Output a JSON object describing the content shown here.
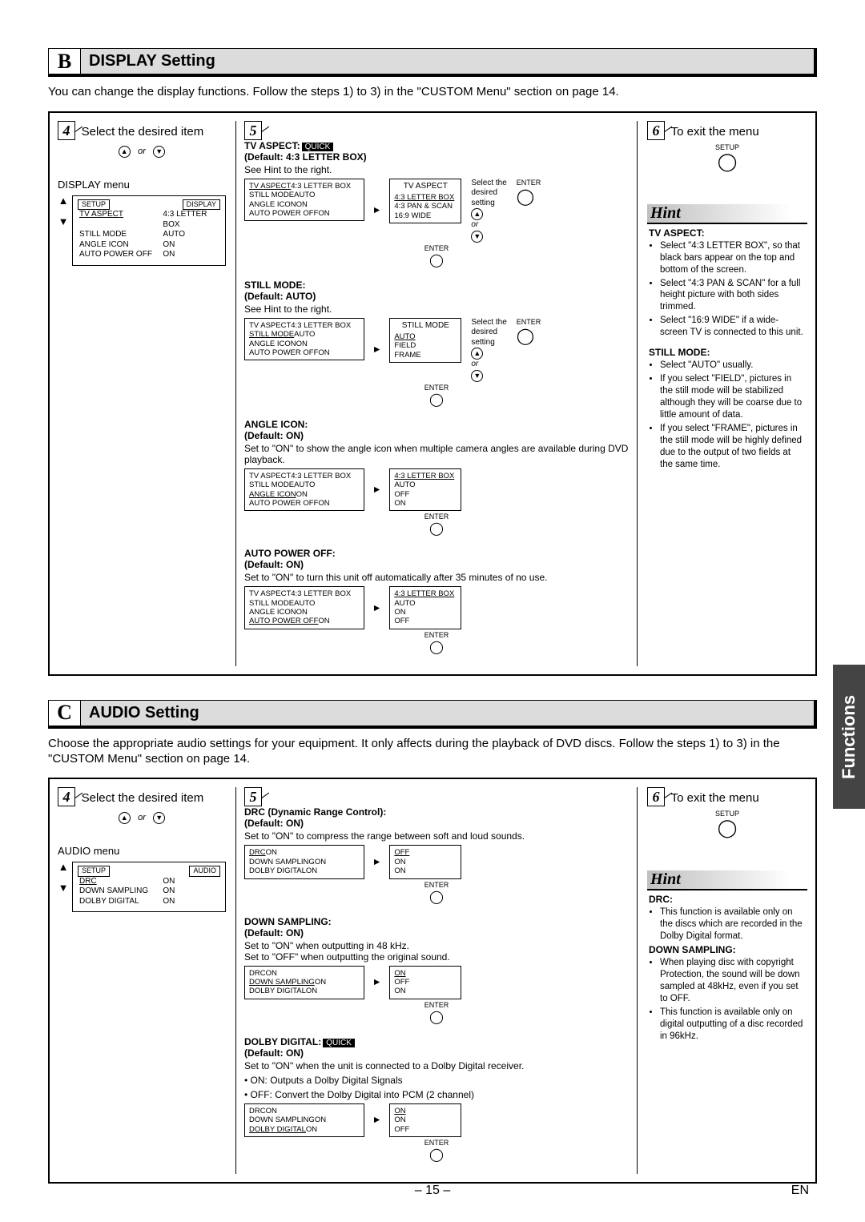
{
  "sectionB": {
    "letter": "B",
    "title": "DISPLAY Setting",
    "intro": "You can change the display functions. Follow the steps 1) to 3) in the \"CUSTOM Menu\" section on page 14.",
    "step4": {
      "num": "4",
      "label": "Select the desired item",
      "or": "or"
    },
    "step5": {
      "num": "5"
    },
    "step6": {
      "num": "6",
      "label": "To exit the menu",
      "setup": "SETUP"
    },
    "display_menu_title": "DISPLAY menu",
    "menu": {
      "hdr_left": "SETUP",
      "hdr_right": "DISPLAY",
      "rows": [
        {
          "l": "TV ASPECT",
          "r": "4:3 LETTER BOX",
          "ul": true
        },
        {
          "l": "STILL MODE",
          "r": "AUTO"
        },
        {
          "l": "ANGLE ICON",
          "r": "ON"
        },
        {
          "l": "AUTO POWER OFF",
          "r": "ON"
        }
      ]
    },
    "settings": [
      {
        "name": "TV ASPECT:",
        "quick": "QUICK",
        "default": "(Default: 4:3 LETTER BOX)",
        "note": "See Hint to the right.",
        "left_box_hdr": "",
        "left_hl": "TV ASPECT",
        "left_rows": [
          {
            "l": "TV ASPECT",
            "r": "4:3 LETTER BOX"
          },
          {
            "l": "STILL MODE",
            "r": "AUTO"
          },
          {
            "l": "ANGLE ICON",
            "r": "ON"
          },
          {
            "l": "AUTO POWER OFF",
            "r": "ON"
          }
        ],
        "right_title": "TV ASPECT",
        "right_rows": [
          "4:3 LETTER BOX",
          "4:3 PAN & SCAN",
          "16:9 WIDE"
        ],
        "side": "Select the\ndesired\nsetting",
        "side2": "or",
        "enter": "ENTER"
      },
      {
        "name": "STILL MODE:",
        "default": "(Default: AUTO)",
        "note": "See Hint to the right.",
        "left_hl": "STILL MODE",
        "left_rows": [
          {
            "l": "TV ASPECT",
            "r": "4:3 LETTER BOX"
          },
          {
            "l": "STILL MODE",
            "r": "AUTO"
          },
          {
            "l": "ANGLE ICON",
            "r": "ON"
          },
          {
            "l": "AUTO POWER OFF",
            "r": "ON"
          }
        ],
        "right_title": "STILL MODE",
        "right_rows": [
          "AUTO",
          "FIELD",
          "FRAME"
        ],
        "side": "Select the\ndesired\nsetting",
        "side2": "or",
        "enter": "ENTER"
      },
      {
        "name": "ANGLE ICON:",
        "default": "(Default: ON)",
        "note": "Set to \"ON\" to show the angle icon when multiple camera angles are available during DVD playback.",
        "left_hl": "ANGLE ICON",
        "left_rows": [
          {
            "l": "TV ASPECT",
            "r": "4:3 LETTER BOX"
          },
          {
            "l": "STILL MODE",
            "r": "AUTO"
          },
          {
            "l": "ANGLE ICON",
            "r": "ON"
          },
          {
            "l": "AUTO POWER OFF",
            "r": "ON"
          }
        ],
        "right_title": "",
        "right_rows": [
          "4:3 LETTER BOX",
          "AUTO",
          "OFF",
          "ON"
        ],
        "enter": "ENTER"
      },
      {
        "name": "AUTO POWER OFF:",
        "default": "(Default: ON)",
        "note": "Set to \"ON\" to turn this unit off automatically after 35 minutes of no use.",
        "left_hl": "AUTO POWER OFF",
        "left_rows": [
          {
            "l": "TV ASPECT",
            "r": "4:3 LETTER BOX"
          },
          {
            "l": "STILL MODE",
            "r": "AUTO"
          },
          {
            "l": "ANGLE ICON",
            "r": "ON"
          },
          {
            "l": "AUTO POWER OFF",
            "r": "ON"
          }
        ],
        "right_title": "",
        "right_rows": [
          "4:3 LETTER BOX",
          "AUTO",
          "ON",
          "OFF"
        ],
        "enter": "ENTER"
      }
    ],
    "hint_title": "Hint",
    "hint": {
      "tv_aspect": "TV ASPECT:",
      "tv_items": [
        "Select \"4:3 LETTER BOX\", so that black bars appear on the top and bottom of the screen.",
        "Select \"4:3 PAN & SCAN\" for a full height picture with both sides trimmed.",
        "Select \"16:9 WIDE\" if a wide-screen TV is connected to this unit."
      ],
      "still": "STILL MODE:",
      "still_items": [
        "Select \"AUTO\" usually.",
        "If you select \"FIELD\", pictures in the still mode will be stabilized although they will be coarse due to little amount of data.",
        "If you select \"FRAME\", pictures in the still mode will be highly defined due to the output of two fields at the same time."
      ]
    }
  },
  "sectionC": {
    "letter": "C",
    "title": "AUDIO Setting",
    "intro": "Choose the appropriate audio settings for your equipment. It only affects during the playback of DVD discs. Follow the steps 1) to 3) in the \"CUSTOM Menu\" section on page 14.",
    "step4": {
      "num": "4",
      "label": "Select the desired item",
      "or": "or"
    },
    "step5": {
      "num": "5"
    },
    "step6": {
      "num": "6",
      "label": "To exit the menu",
      "setup": "SETUP"
    },
    "audio_menu_title": "AUDIO menu",
    "menu": {
      "hdr_left": "SETUP",
      "hdr_right": "AUDIO",
      "rows": [
        {
          "l": "DRC",
          "r": "ON",
          "ul": true
        },
        {
          "l": "DOWN SAMPLING",
          "r": "ON"
        },
        {
          "l": "DOLBY DIGITAL",
          "r": "ON"
        }
      ]
    },
    "settings": [
      {
        "name": "DRC (Dynamic Range Control):",
        "default": "(Default: ON)",
        "note": "Set to \"ON\" to compress the range between soft and loud sounds.",
        "left_hl": "DRC",
        "left_rows": [
          {
            "l": "DRC",
            "r": "ON"
          },
          {
            "l": "DOWN SAMPLING",
            "r": "ON"
          },
          {
            "l": "DOLBY DIGITAL",
            "r": "ON"
          }
        ],
        "right_rows": [
          "OFF",
          "ON",
          "ON"
        ],
        "enter": "ENTER"
      },
      {
        "name": "DOWN SAMPLING:",
        "default": "(Default: ON)",
        "note": "Set to \"ON\" when outputting in 48 kHz.\nSet to \"OFF\" when outputting the original sound.",
        "left_hl": "DOWN SAMPLING",
        "left_rows": [
          {
            "l": "DRC",
            "r": "ON"
          },
          {
            "l": "DOWN SAMPLING",
            "r": "ON"
          },
          {
            "l": "DOLBY DIGITAL",
            "r": "ON"
          }
        ],
        "right_rows": [
          "ON",
          "OFF",
          "ON"
        ],
        "enter": "ENTER"
      },
      {
        "name": "DOLBY DIGITAL:",
        "quick": "QUICK",
        "default": "(Default: ON)",
        "note": "Set to \"ON\" when the unit is connected to a Dolby Digital receiver.",
        "bullets": [
          "ON: Outputs a Dolby Digital Signals",
          "OFF: Convert the Dolby Digital into PCM (2 channel)"
        ],
        "left_hl": "DOLBY DIGITAL",
        "left_rows": [
          {
            "l": "DRC",
            "r": "ON"
          },
          {
            "l": "DOWN SAMPLING",
            "r": "ON"
          },
          {
            "l": "DOLBY DIGITAL",
            "r": "ON"
          }
        ],
        "right_rows": [
          "ON",
          "ON",
          "OFF"
        ],
        "enter": "ENTER"
      }
    ],
    "hint_title": "Hint",
    "hint": {
      "drc": "DRC:",
      "drc_items": [
        "This function is available only on the discs which are recorded in the Dolby Digital format."
      ],
      "ds": "DOWN SAMPLING:",
      "ds_items": [
        "When playing disc with copyright Protection, the sound will be down sampled at 48kHz, even if you set to OFF.",
        "This function is available only on digital outputting of a disc recorded in 96kHz."
      ]
    }
  },
  "functions_tab": "Functions",
  "page_num": "– 15 –",
  "lang": "EN"
}
